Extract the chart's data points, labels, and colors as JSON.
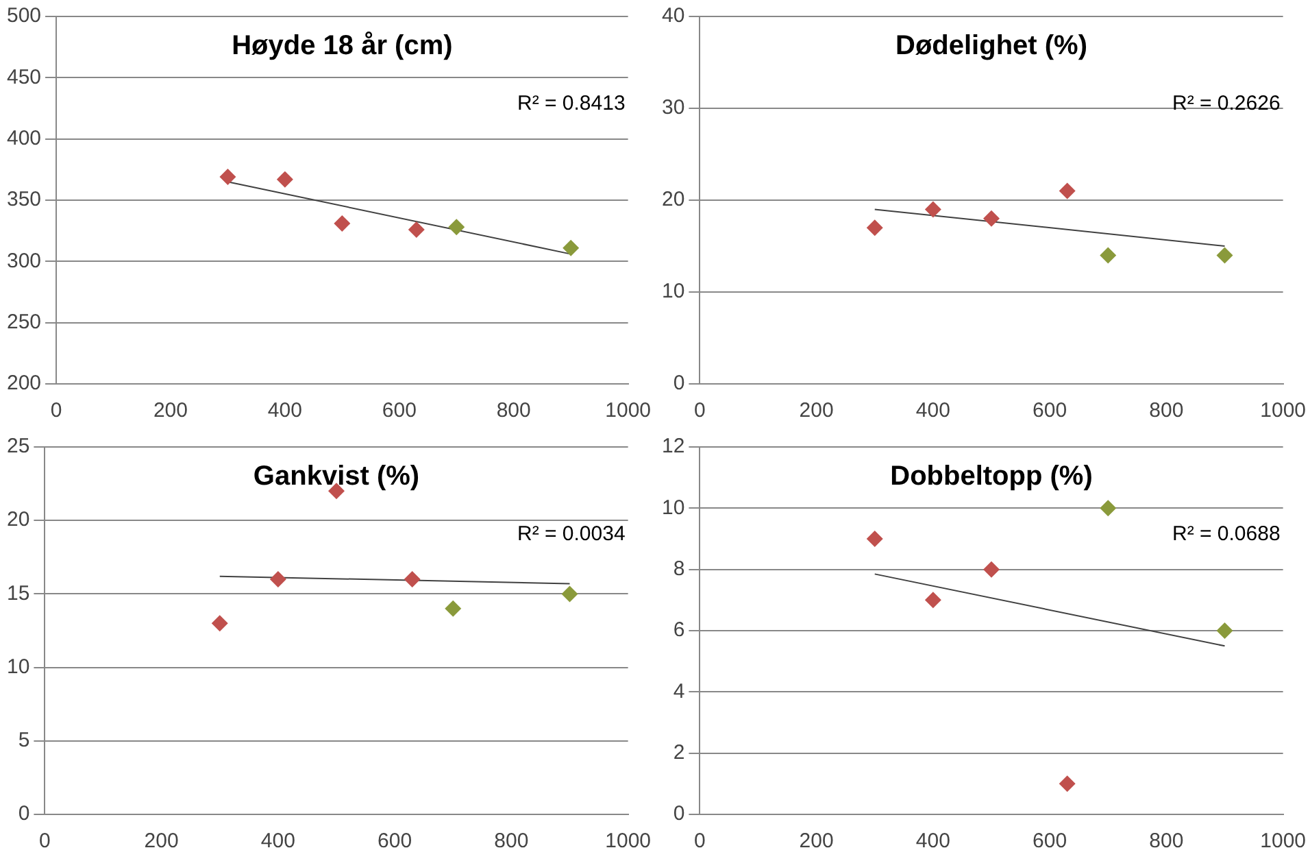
{
  "chart_data": [
    {
      "type": "scatter",
      "title": "Høyde 18 år (cm)",
      "xlim": [
        0,
        1000
      ],
      "xticks": [
        0,
        200,
        400,
        600,
        800,
        1000
      ],
      "ylim": [
        200,
        500
      ],
      "yticks": [
        200,
        250,
        300,
        350,
        400,
        450,
        500
      ],
      "grid": "y",
      "legend": false,
      "marker": "diamond",
      "annotations": [
        "R² = 0.8413"
      ],
      "series": [
        {
          "color": "#c0504d",
          "x": [
            300,
            400,
            500,
            630
          ],
          "values": [
            369,
            367,
            331,
            326
          ]
        },
        {
          "color": "#8a9a3b",
          "x": [
            700,
            900
          ],
          "values": [
            328,
            311
          ]
        },
        {
          "type": "line",
          "color": "#404040",
          "marker": "none",
          "x": [
            300,
            900
          ],
          "values": [
            365,
            306
          ]
        }
      ]
    },
    {
      "type": "scatter",
      "title": "Dødelighet (%)",
      "xlim": [
        0,
        1000
      ],
      "xticks": [
        0,
        200,
        400,
        600,
        800,
        1000
      ],
      "ylim": [
        0,
        40
      ],
      "yticks": [
        0,
        10,
        20,
        30,
        40
      ],
      "grid": "y",
      "legend": false,
      "marker": "diamond",
      "annotations": [
        "R² = 0.2626"
      ],
      "series": [
        {
          "color": "#c0504d",
          "x": [
            300,
            400,
            500,
            630
          ],
          "values": [
            17,
            19,
            18,
            21
          ]
        },
        {
          "color": "#8a9a3b",
          "x": [
            700,
            900
          ],
          "values": [
            14,
            14
          ]
        },
        {
          "type": "line",
          "color": "#404040",
          "marker": "none",
          "x": [
            300,
            900
          ],
          "values": [
            19,
            15
          ]
        }
      ]
    },
    {
      "type": "scatter",
      "title": "Gankvist (%)",
      "xlim": [
        0,
        1000
      ],
      "xticks": [
        0,
        200,
        400,
        600,
        800,
        1000
      ],
      "ylim": [
        0,
        25
      ],
      "yticks": [
        0,
        5,
        10,
        15,
        20,
        25
      ],
      "grid": "y",
      "legend": false,
      "marker": "diamond",
      "annotations": [
        "R² = 0.0034"
      ],
      "series": [
        {
          "color": "#c0504d",
          "x": [
            300,
            400,
            500,
            630
          ],
          "values": [
            13,
            16,
            22,
            16
          ]
        },
        {
          "color": "#8a9a3b",
          "x": [
            700,
            900
          ],
          "values": [
            14,
            15
          ]
        },
        {
          "type": "line",
          "color": "#404040",
          "marker": "none",
          "x": [
            300,
            900
          ],
          "values": [
            16.2,
            15.7
          ]
        }
      ]
    },
    {
      "type": "scatter",
      "title": "Dobbeltopp (%)",
      "xlim": [
        0,
        1000
      ],
      "xticks": [
        0,
        200,
        400,
        600,
        800,
        1000
      ],
      "ylim": [
        0,
        12
      ],
      "yticks": [
        0,
        2,
        4,
        6,
        8,
        10,
        12
      ],
      "grid": "y",
      "legend": false,
      "marker": "diamond",
      "annotations": [
        "R² = 0.0688"
      ],
      "series": [
        {
          "color": "#c0504d",
          "x": [
            300,
            400,
            500,
            630
          ],
          "values": [
            9,
            7,
            8,
            1
          ]
        },
        {
          "color": "#8a9a3b",
          "x": [
            700,
            900
          ],
          "values": [
            10,
            6
          ]
        },
        {
          "type": "line",
          "color": "#404040",
          "marker": "none",
          "x": [
            300,
            900
          ],
          "values": [
            7.85,
            5.5
          ]
        }
      ]
    }
  ]
}
